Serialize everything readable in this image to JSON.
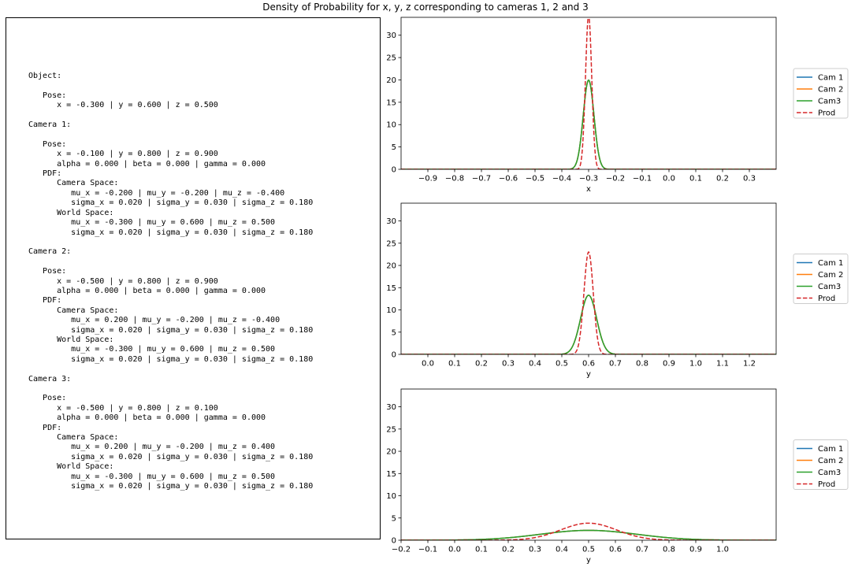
{
  "title": "Density of Probability for x, y, z corresponding to cameras 1, 2 and 3",
  "text_panel": {
    "lines": [
      "Object:",
      "",
      "   Pose:",
      "      x = -0.300 | y = 0.600 | z = 0.500",
      "",
      "Camera 1:",
      "",
      "   Pose:",
      "      x = -0.100 | y = 0.800 | z = 0.900",
      "      alpha = 0.000 | beta = 0.000 | gamma = 0.000",
      "   PDF:",
      "      Camera Space:",
      "         mu_x = -0.200 | mu_y = -0.200 | mu_z = -0.400",
      "         sigma_x = 0.020 | sigma_y = 0.030 | sigma_z = 0.180",
      "      World Space:",
      "         mu_x = -0.300 | mu_y = 0.600 | mu_z = 0.500",
      "         sigma_x = 0.020 | sigma_y = 0.030 | sigma_z = 0.180",
      "",
      "Camera 2:",
      "",
      "   Pose:",
      "      x = -0.500 | y = 0.800 | z = 0.900",
      "      alpha = 0.000 | beta = 0.000 | gamma = 0.000",
      "   PDF:",
      "      Camera Space:",
      "         mu_x = 0.200 | mu_y = -0.200 | mu_z = -0.400",
      "         sigma_x = 0.020 | sigma_y = 0.030 | sigma_z = 0.180",
      "      World Space:",
      "         mu_x = -0.300 | mu_y = 0.600 | mu_z = 0.500",
      "         sigma_x = 0.020 | sigma_y = 0.030 | sigma_z = 0.180",
      "",
      "Camera 3:",
      "",
      "   Pose:",
      "      x = -0.500 | y = 0.800 | z = 0.100",
      "      alpha = 0.000 | beta = 0.000 | gamma = 0.000",
      "   PDF:",
      "      Camera Space:",
      "         mu_x = 0.200 | mu_y = -0.200 | mu_z = 0.400",
      "         sigma_x = 0.020 | sigma_y = 0.030 | sigma_z = 0.180",
      "      World Space:",
      "         mu_x = -0.300 | mu_y = 0.600 | mu_z = 0.500",
      "         sigma_x = 0.020 | sigma_y = 0.030 | sigma_z = 0.180"
    ]
  },
  "chart_data": [
    {
      "type": "line",
      "xlabel": "x",
      "xlim": [
        -1.0,
        0.4
      ],
      "ylim": [
        0,
        34
      ],
      "xticks": [
        -0.9,
        -0.8,
        -0.7,
        -0.6,
        -0.5,
        -0.4,
        -0.3,
        -0.2,
        -0.1,
        0.0,
        0.1,
        0.2,
        0.3
      ],
      "xtick_labels": [
        "−0.9",
        "−0.8",
        "−0.7",
        "−0.6",
        "−0.5",
        "−0.4",
        "−0.3",
        "−0.2",
        "−0.1",
        "0.0",
        "0.1",
        "0.2",
        "0.3"
      ],
      "yticks": [
        0,
        5,
        10,
        15,
        20,
        25,
        30
      ],
      "ytick_labels": [
        "0",
        "5",
        "10",
        "15",
        "20",
        "25",
        "30"
      ],
      "legend_position": "outside-right",
      "series": [
        {
          "name": "Cam 1",
          "color": "#1f77b4",
          "style": "solid",
          "mu": -0.3,
          "sigma": 0.02
        },
        {
          "name": "Cam 2",
          "color": "#ff7f0e",
          "style": "solid",
          "mu": -0.3,
          "sigma": 0.02
        },
        {
          "name": "Cam3",
          "color": "#2ca02c",
          "style": "solid",
          "mu": -0.3,
          "sigma": 0.02
        },
        {
          "name": "Prod",
          "color": "#d62728",
          "style": "dashed",
          "mu": -0.3,
          "sigma": 0.01155
        }
      ]
    },
    {
      "type": "line",
      "xlabel": "y",
      "xlim": [
        -0.1,
        1.3
      ],
      "ylim": [
        0,
        34
      ],
      "xticks": [
        0.0,
        0.1,
        0.2,
        0.3,
        0.4,
        0.5,
        0.6,
        0.7,
        0.8,
        0.9,
        1.0,
        1.1,
        1.2
      ],
      "xtick_labels": [
        "0.0",
        "0.1",
        "0.2",
        "0.3",
        "0.4",
        "0.5",
        "0.6",
        "0.7",
        "0.8",
        "0.9",
        "1.0",
        "1.1",
        "1.2"
      ],
      "yticks": [
        0,
        5,
        10,
        15,
        20,
        25,
        30
      ],
      "ytick_labels": [
        "0",
        "5",
        "10",
        "15",
        "20",
        "25",
        "30"
      ],
      "legend_position": "outside-right",
      "series": [
        {
          "name": "Cam 1",
          "color": "#1f77b4",
          "style": "solid",
          "mu": 0.6,
          "sigma": 0.03
        },
        {
          "name": "Cam 2",
          "color": "#ff7f0e",
          "style": "solid",
          "mu": 0.6,
          "sigma": 0.03
        },
        {
          "name": "Cam3",
          "color": "#2ca02c",
          "style": "solid",
          "mu": 0.6,
          "sigma": 0.03
        },
        {
          "name": "Prod",
          "color": "#d62728",
          "style": "dashed",
          "mu": 0.6,
          "sigma": 0.01732
        }
      ]
    },
    {
      "type": "line",
      "xlabel": "y",
      "xlim": [
        -0.2,
        1.2
      ],
      "ylim": [
        0,
        34
      ],
      "xticks": [
        -0.2,
        -0.1,
        0.0,
        0.1,
        0.2,
        0.3,
        0.4,
        0.5,
        0.6,
        0.7,
        0.8,
        0.9,
        1.0
      ],
      "xtick_labels": [
        "−0.2",
        "−0.1",
        "0.0",
        "0.1",
        "0.2",
        "0.3",
        "0.4",
        "0.5",
        "0.6",
        "0.7",
        "0.8",
        "0.9",
        "1.0"
      ],
      "yticks": [
        0,
        5,
        10,
        15,
        20,
        25,
        30
      ],
      "ytick_labels": [
        "0",
        "5",
        "10",
        "15",
        "20",
        "25",
        "30"
      ],
      "legend_position": "outside-right",
      "series": [
        {
          "name": "Cam 1",
          "color": "#1f77b4",
          "style": "solid",
          "mu": 0.5,
          "sigma": 0.18
        },
        {
          "name": "Cam 2",
          "color": "#ff7f0e",
          "style": "solid",
          "mu": 0.5,
          "sigma": 0.18
        },
        {
          "name": "Cam3",
          "color": "#2ca02c",
          "style": "solid",
          "mu": 0.5,
          "sigma": 0.18
        },
        {
          "name": "Prod",
          "color": "#d62728",
          "style": "dashed",
          "mu": 0.5,
          "sigma": 0.1039
        }
      ]
    }
  ]
}
